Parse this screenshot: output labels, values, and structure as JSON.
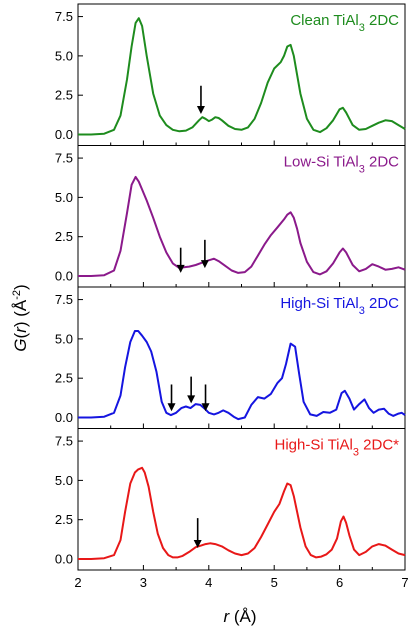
{
  "chart_data": {
    "type": "line",
    "layout": "stacked-panels",
    "xlabel_var": "r",
    "xlabel_unit": "(Å)",
    "ylabel_var": "G",
    "ylabel_arg": "r",
    "ylabel_unit_base": "(Å",
    "ylabel_unit_exp": "-2",
    "ylabel_unit_close": ")",
    "xlim": [
      2,
      7
    ],
    "ylim": [
      -0.7,
      8.3
    ],
    "x_ticks": [
      2,
      3,
      4,
      5,
      6,
      7
    ],
    "x_tick_labels": [
      "2",
      "3",
      "4",
      "5",
      "6",
      "7"
    ],
    "y_ticks": [
      0.0,
      2.5,
      5.0,
      7.5
    ],
    "y_tick_labels": [
      "0.0",
      "2.5",
      "5.0",
      "7.5"
    ],
    "grid": false,
    "panels": [
      {
        "label_pre": "Clean TiAl",
        "label_sub": "3",
        "label_post": " 2DC",
        "color": "#1e8c1e",
        "arrows": [
          {
            "x": 3.88,
            "y_tip": 1.3,
            "y_tail": 3.1
          }
        ],
        "x": [
          2.0,
          2.2,
          2.4,
          2.55,
          2.65,
          2.75,
          2.82,
          2.88,
          2.93,
          2.98,
          3.05,
          3.15,
          3.25,
          3.35,
          3.45,
          3.55,
          3.65,
          3.75,
          3.85,
          3.9,
          3.95,
          4.0,
          4.05,
          4.1,
          4.15,
          4.2,
          4.3,
          4.4,
          4.5,
          4.6,
          4.7,
          4.8,
          4.9,
          5.0,
          5.1,
          5.15,
          5.2,
          5.25,
          5.3,
          5.35,
          5.4,
          5.5,
          5.6,
          5.7,
          5.8,
          5.9,
          6.0,
          6.05,
          6.1,
          6.15,
          6.2,
          6.3,
          6.4,
          6.5,
          6.6,
          6.7,
          6.8,
          6.9,
          7.0
        ],
        "y": [
          0.0,
          0.0,
          0.05,
          0.3,
          1.2,
          3.5,
          5.6,
          7.1,
          7.4,
          6.9,
          5.0,
          2.6,
          1.2,
          0.6,
          0.3,
          0.2,
          0.25,
          0.45,
          0.9,
          1.1,
          1.0,
          0.85,
          0.95,
          1.1,
          1.05,
          0.9,
          0.55,
          0.35,
          0.3,
          0.45,
          1.0,
          2.0,
          3.3,
          4.2,
          4.6,
          5.0,
          5.6,
          5.7,
          5.0,
          3.8,
          2.6,
          1.0,
          0.3,
          0.15,
          0.4,
          0.9,
          1.6,
          1.7,
          1.4,
          1.0,
          0.6,
          0.3,
          0.35,
          0.55,
          0.75,
          0.9,
          0.85,
          0.6,
          0.35
        ]
      },
      {
        "label_pre": "Low-Si TiAl",
        "label_sub": "3",
        "label_post": " 2DC",
        "color": "#8b1a8b",
        "arrows": [
          {
            "x": 3.57,
            "y_tip": 0.2,
            "y_tail": 1.8
          },
          {
            "x": 3.94,
            "y_tip": 0.5,
            "y_tail": 2.3
          }
        ],
        "x": [
          2.0,
          2.2,
          2.4,
          2.55,
          2.65,
          2.75,
          2.82,
          2.88,
          2.93,
          2.98,
          3.05,
          3.15,
          3.25,
          3.35,
          3.45,
          3.55,
          3.62,
          3.7,
          3.8,
          3.9,
          4.0,
          4.08,
          4.15,
          4.25,
          4.35,
          4.45,
          4.55,
          4.65,
          4.75,
          4.85,
          4.95,
          5.05,
          5.15,
          5.2,
          5.25,
          5.3,
          5.35,
          5.4,
          5.5,
          5.6,
          5.7,
          5.8,
          5.9,
          6.0,
          6.05,
          6.1,
          6.15,
          6.2,
          6.3,
          6.4,
          6.5,
          6.6,
          6.7,
          6.8,
          6.9,
          7.0
        ],
        "y": [
          0.0,
          0.0,
          0.05,
          0.35,
          1.6,
          4.0,
          5.8,
          6.3,
          6.0,
          5.5,
          4.8,
          3.7,
          2.5,
          1.5,
          0.8,
          0.5,
          0.55,
          0.6,
          0.7,
          0.85,
          1.0,
          1.1,
          0.95,
          0.65,
          0.35,
          0.2,
          0.25,
          0.6,
          1.3,
          2.0,
          2.6,
          3.1,
          3.6,
          3.9,
          4.05,
          3.7,
          3.0,
          2.1,
          0.9,
          0.25,
          0.1,
          0.3,
          0.8,
          1.5,
          1.75,
          1.5,
          1.1,
          0.7,
          0.3,
          0.45,
          0.75,
          0.6,
          0.4,
          0.45,
          0.55,
          0.4
        ]
      },
      {
        "label_pre": "High-Si TiAl",
        "label_sub": "3",
        "label_post": " 2DC",
        "color": "#1515e0",
        "arrows": [
          {
            "x": 3.43,
            "y_tip": 0.4,
            "y_tail": 2.1
          },
          {
            "x": 3.73,
            "y_tip": 0.9,
            "y_tail": 2.6
          },
          {
            "x": 3.95,
            "y_tip": 0.4,
            "y_tail": 2.1
          }
        ],
        "x": [
          2.0,
          2.2,
          2.4,
          2.55,
          2.65,
          2.72,
          2.8,
          2.87,
          2.92,
          2.98,
          3.05,
          3.12,
          3.2,
          3.28,
          3.35,
          3.42,
          3.5,
          3.58,
          3.65,
          3.72,
          3.8,
          3.87,
          3.94,
          4.0,
          4.08,
          4.15,
          4.22,
          4.3,
          4.38,
          4.45,
          4.55,
          4.65,
          4.75,
          4.85,
          4.95,
          5.05,
          5.12,
          5.18,
          5.25,
          5.32,
          5.38,
          5.45,
          5.55,
          5.65,
          5.75,
          5.85,
          5.95,
          6.03,
          6.08,
          6.15,
          6.22,
          6.3,
          6.38,
          6.45,
          6.52,
          6.6,
          6.68,
          6.75,
          6.82,
          6.9,
          6.95,
          7.0
        ],
        "y": [
          0.0,
          0.0,
          0.05,
          0.3,
          1.4,
          3.2,
          4.8,
          5.5,
          5.5,
          5.2,
          4.8,
          4.2,
          2.9,
          1.0,
          0.3,
          0.15,
          0.3,
          0.6,
          0.7,
          0.6,
          0.85,
          0.8,
          0.55,
          0.3,
          0.2,
          0.3,
          0.45,
          0.3,
          0.05,
          -0.1,
          0.0,
          0.8,
          1.3,
          1.2,
          1.5,
          2.2,
          2.5,
          3.4,
          4.7,
          4.5,
          2.8,
          1.0,
          0.2,
          0.1,
          0.35,
          0.3,
          0.5,
          1.55,
          1.7,
          1.2,
          0.5,
          0.85,
          1.15,
          0.6,
          0.3,
          0.5,
          0.55,
          0.25,
          0.1,
          0.25,
          0.3,
          0.15
        ]
      },
      {
        "label_pre": "High-Si TiAl",
        "label_sub": "3",
        "label_post": " 2DC*",
        "color": "#e81818",
        "arrows": [
          {
            "x": 3.83,
            "y_tip": 0.7,
            "y_tail": 2.6
          }
        ],
        "x": [
          2.0,
          2.2,
          2.4,
          2.55,
          2.65,
          2.72,
          2.8,
          2.87,
          2.92,
          2.98,
          3.02,
          3.08,
          3.15,
          3.22,
          3.3,
          3.38,
          3.45,
          3.52,
          3.6,
          3.7,
          3.8,
          3.88,
          3.95,
          4.02,
          4.1,
          4.2,
          4.3,
          4.4,
          4.5,
          4.6,
          4.7,
          4.8,
          4.9,
          5.0,
          5.08,
          5.15,
          5.2,
          5.25,
          5.3,
          5.35,
          5.4,
          5.48,
          5.56,
          5.64,
          5.72,
          5.8,
          5.88,
          5.96,
          6.02,
          6.06,
          6.1,
          6.15,
          6.22,
          6.3,
          6.4,
          6.5,
          6.6,
          6.7,
          6.8,
          6.9,
          7.0
        ],
        "y": [
          0.0,
          0.0,
          0.05,
          0.25,
          1.2,
          3.0,
          4.8,
          5.5,
          5.7,
          5.8,
          5.5,
          4.6,
          3.0,
          1.6,
          0.7,
          0.25,
          0.1,
          0.1,
          0.2,
          0.45,
          0.75,
          0.85,
          0.95,
          1.0,
          0.95,
          0.8,
          0.55,
          0.35,
          0.25,
          0.35,
          0.7,
          1.4,
          2.2,
          3.0,
          3.5,
          4.3,
          4.8,
          4.7,
          4.0,
          3.0,
          2.0,
          0.8,
          0.25,
          0.1,
          0.15,
          0.3,
          0.6,
          1.3,
          2.4,
          2.7,
          2.3,
          1.5,
          0.6,
          0.25,
          0.45,
          0.8,
          0.95,
          0.85,
          0.6,
          0.35,
          0.25
        ]
      }
    ]
  }
}
